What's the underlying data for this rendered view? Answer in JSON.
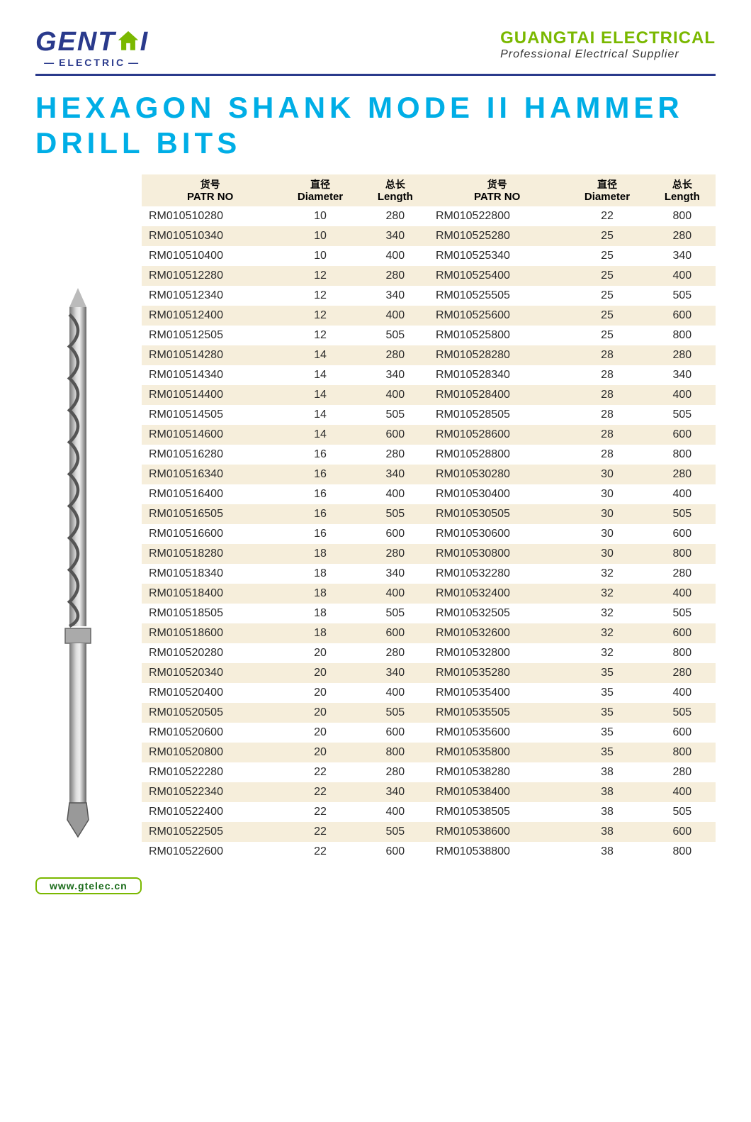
{
  "header": {
    "logo_main_1": "GENT",
    "logo_main_2": "I",
    "logo_sub": "ELECTRIC",
    "company_name": "GUANGTAI ELECTRICAL",
    "company_tag": "Professional Electrical Supplier"
  },
  "title": "HEXAGON SHANK MODE II HAMMER DRILL BITS",
  "table": {
    "columns": [
      {
        "cn": "货号",
        "en": "PATR NO"
      },
      {
        "cn": "直径",
        "en": "Diameter"
      },
      {
        "cn": "总长",
        "en": "Length"
      },
      {
        "cn": "货号",
        "en": "PATR NO"
      },
      {
        "cn": "直径",
        "en": "Diameter"
      },
      {
        "cn": "总长",
        "en": "Length"
      }
    ],
    "rows": [
      [
        "RM010510280",
        "10",
        "280",
        "RM010522800",
        "22",
        "800"
      ],
      [
        "RM010510340",
        "10",
        "340",
        "RM010525280",
        "25",
        "280"
      ],
      [
        "RM010510400",
        "10",
        "400",
        "RM010525340",
        "25",
        "340"
      ],
      [
        "RM010512280",
        "12",
        "280",
        "RM010525400",
        "25",
        "400"
      ],
      [
        "RM010512340",
        "12",
        "340",
        "RM010525505",
        "25",
        "505"
      ],
      [
        "RM010512400",
        "12",
        "400",
        "RM010525600",
        "25",
        "600"
      ],
      [
        "RM010512505",
        "12",
        "505",
        "RM010525800",
        "25",
        "800"
      ],
      [
        "RM010514280",
        "14",
        "280",
        "RM010528280",
        "28",
        "280"
      ],
      [
        "RM010514340",
        "14",
        "340",
        "RM010528340",
        "28",
        "340"
      ],
      [
        "RM010514400",
        "14",
        "400",
        "RM010528400",
        "28",
        "400"
      ],
      [
        "RM010514505",
        "14",
        "505",
        "RM010528505",
        "28",
        "505"
      ],
      [
        "RM010514600",
        "14",
        "600",
        "RM010528600",
        "28",
        "600"
      ],
      [
        "RM010516280",
        "16",
        "280",
        "RM010528800",
        "28",
        "800"
      ],
      [
        "RM010516340",
        "16",
        "340",
        "RM010530280",
        "30",
        "280"
      ],
      [
        "RM010516400",
        "16",
        "400",
        "RM010530400",
        "30",
        "400"
      ],
      [
        "RM010516505",
        "16",
        "505",
        "RM010530505",
        "30",
        "505"
      ],
      [
        "RM010516600",
        "16",
        "600",
        "RM010530600",
        "30",
        "600"
      ],
      [
        "RM010518280",
        "18",
        "280",
        "RM010530800",
        "30",
        "800"
      ],
      [
        "RM010518340",
        "18",
        "340",
        "RM010532280",
        "32",
        "280"
      ],
      [
        "RM010518400",
        "18",
        "400",
        "RM010532400",
        "32",
        "400"
      ],
      [
        "RM010518505",
        "18",
        "505",
        "RM010532505",
        "32",
        "505"
      ],
      [
        "RM010518600",
        "18",
        "600",
        "RM010532600",
        "32",
        "600"
      ],
      [
        "RM010520280",
        "20",
        "280",
        "RM010532800",
        "32",
        "800"
      ],
      [
        "RM010520340",
        "20",
        "340",
        "RM010535280",
        "35",
        "280"
      ],
      [
        "RM010520400",
        "20",
        "400",
        "RM010535400",
        "35",
        "400"
      ],
      [
        "RM010520505",
        "20",
        "505",
        "RM010535505",
        "35",
        "505"
      ],
      [
        "RM010520600",
        "20",
        "600",
        "RM010535600",
        "35",
        "600"
      ],
      [
        "RM010520800",
        "20",
        "800",
        "RM010535800",
        "35",
        "800"
      ],
      [
        "RM010522280",
        "22",
        "280",
        "RM010538280",
        "38",
        "280"
      ],
      [
        "RM010522340",
        "22",
        "340",
        "RM010538400",
        "38",
        "400"
      ],
      [
        "RM010522400",
        "22",
        "400",
        "RM010538505",
        "38",
        "505"
      ],
      [
        "RM010522505",
        "22",
        "505",
        "RM010538600",
        "38",
        "600"
      ],
      [
        "RM010522600",
        "22",
        "600",
        "RM010538800",
        "38",
        "800"
      ]
    ]
  },
  "footer": {
    "url": "www.gtelec.cn"
  },
  "colors": {
    "navy": "#2a3a8c",
    "green": "#7ab800",
    "cyan": "#00aee6",
    "cream": "#f6eedb",
    "white": "#ffffff"
  }
}
